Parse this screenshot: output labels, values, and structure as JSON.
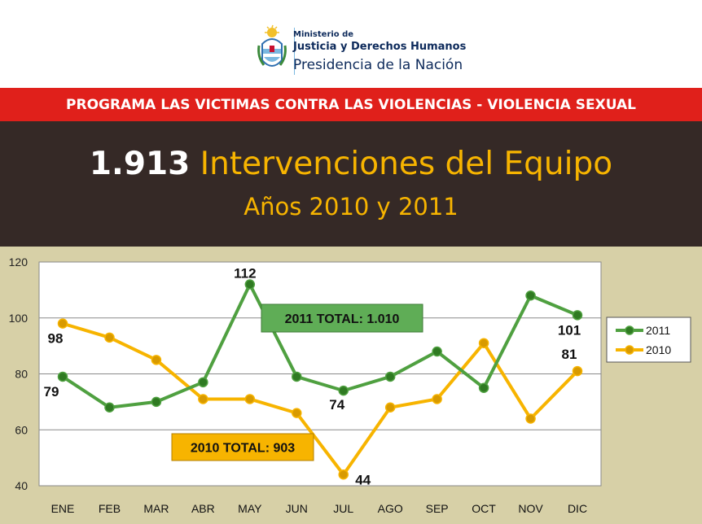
{
  "header": {
    "logo": {
      "line1": "Ministerio de",
      "line2": "Justicia y Derechos Humanos",
      "line3": "Presidencia de la Nación"
    },
    "banner": "PROGRAMA LAS VICTIMAS CONTRA LAS VIOLENCIAS - VIOLENCIA SEXUAL",
    "title_number": "1.913",
    "title_text": "Intervenciones del Equipo",
    "subtitle": "Años 2010 y 2011"
  },
  "colors": {
    "banner_red": "#e0201b",
    "dark_band": "#352926",
    "accent_gold": "#f7b400",
    "series_2011": "#4fa040",
    "series_2010": "#f7b400",
    "chart_bg": "#d7d0a7"
  },
  "chart_data": {
    "type": "line",
    "categories": [
      "ENE",
      "FEB",
      "MAR",
      "ABR",
      "MAY",
      "JUN",
      "JUL",
      "AGO",
      "SEP",
      "OCT",
      "NOV",
      "DIC"
    ],
    "series": [
      {
        "name": "2011",
        "values": [
          79,
          68,
          70,
          77,
          112,
          79,
          74,
          79,
          88,
          75,
          108,
          101
        ]
      },
      {
        "name": "2010",
        "values": [
          98,
          93,
          85,
          71,
          71,
          66,
          44,
          68,
          71,
          91,
          64,
          81
        ]
      }
    ],
    "ylim": [
      40,
      120
    ],
    "yticks": [
      40,
      60,
      80,
      100,
      120
    ],
    "grid": true,
    "legend_placement": "right",
    "data_labels": [
      {
        "series": "2011",
        "index": 0,
        "text": "79"
      },
      {
        "series": "2011",
        "index": 4,
        "text": "112"
      },
      {
        "series": "2011",
        "index": 6,
        "text": "74"
      },
      {
        "series": "2011",
        "index": 11,
        "text": "101"
      },
      {
        "series": "2010",
        "index": 0,
        "text": "98"
      },
      {
        "series": "2010",
        "index": 6,
        "text": "44"
      },
      {
        "series": "2010",
        "index": 11,
        "text": "81"
      }
    ],
    "annotations": [
      {
        "series": "2011",
        "text": "2011 TOTAL: 1.010"
      },
      {
        "series": "2010",
        "text": "2010 TOTAL: 903"
      }
    ]
  }
}
